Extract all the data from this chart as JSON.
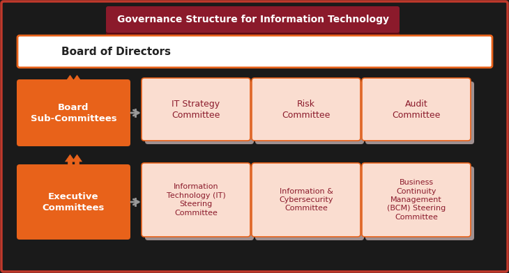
{
  "title": "Governance Structure for Information Technology",
  "title_bg": "#8B1A2B",
  "title_fg": "#FFFFFF",
  "board_label": "Board of Directors",
  "board_bg": "#FFFFFF",
  "board_border": "#E8621A",
  "bg_color": "#1a1a1a",
  "outer_border": "#C0392B",
  "orange_bg": "#E8621A",
  "orange_fg": "#FFFFFF",
  "light_orange_bg": "#FADDD0",
  "light_orange_border": "#E8621A",
  "light_orange_fg": "#8B1A2B",
  "shadow_color": "#A09090",
  "row1_label": "Board\nSub-Committees",
  "row2_label": "Executive\nCommittees",
  "row1_boxes": [
    "IT Strategy\nCommittee",
    "Risk\nCommittee",
    "Audit\nCommittee"
  ],
  "row2_boxes": [
    "Information\nTechnology (IT)\nSteering\nCommittee",
    "Information &\nCybersecurity\nCommittee",
    "Business\nContinuity\nManagement\n(BCM) Steering\nCommittee"
  ],
  "arrow_color": "#E8621A",
  "connector_color": "#999999",
  "title_shadow": "#5a0a14"
}
